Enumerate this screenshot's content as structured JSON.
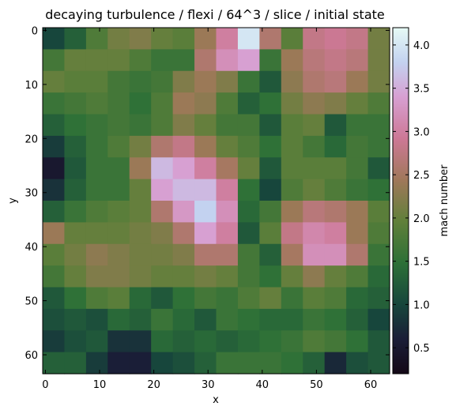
{
  "chart_data": {
    "type": "heatmap",
    "title": "decaying turbulence / flexi / 64^3 / slice / initial state",
    "xlabel": "x",
    "ylabel": "y",
    "xlim": [
      -0.5,
      63.5
    ],
    "ylim": [
      63.5,
      -0.5
    ],
    "xticks": [
      0,
      10,
      20,
      30,
      40,
      50,
      60
    ],
    "yticks": [
      0,
      10,
      20,
      30,
      40,
      50,
      60
    ],
    "colorbar": {
      "label": "mach number",
      "range": [
        0.2,
        4.2
      ],
      "ticks": [
        0.5,
        1.0,
        1.5,
        2.0,
        2.5,
        3.0,
        3.5,
        4.0
      ],
      "tick_labels": [
        "0.5",
        "1.0",
        "1.5",
        "2.0",
        "2.5",
        "3.0",
        "3.5",
        "4.0"
      ]
    },
    "colormap": "cubehelix",
    "grid": "coarse 16x16 resampling of the 64x64 field; rows listed top (y=0) to bottom (y=63), columns x=0..63",
    "values": [
      [
        1.0,
        1.3,
        1.8,
        2.1,
        2.2,
        2.0,
        1.9,
        2.4,
        3.0,
        4.0,
        2.6,
        1.9,
        2.8,
        2.9,
        2.8,
        2.1
      ],
      [
        1.7,
        2.0,
        2.0,
        2.0,
        1.8,
        1.6,
        1.6,
        2.6,
        3.2,
        3.4,
        1.6,
        2.4,
        2.7,
        2.8,
        2.7,
        2.1
      ],
      [
        2.0,
        1.9,
        1.9,
        1.7,
        1.6,
        1.7,
        2.2,
        2.4,
        2.2,
        1.6,
        1.2,
        2.3,
        2.6,
        2.7,
        2.4,
        2.1
      ],
      [
        1.6,
        1.7,
        1.8,
        1.7,
        1.5,
        1.8,
        2.4,
        2.3,
        1.8,
        1.3,
        1.5,
        2.1,
        2.3,
        2.2,
        2.0,
        1.8
      ],
      [
        1.3,
        1.5,
        1.6,
        1.7,
        1.6,
        1.8,
        2.2,
        2.0,
        1.7,
        1.7,
        1.2,
        1.9,
        2.0,
        1.2,
        1.6,
        1.6
      ],
      [
        0.9,
        1.3,
        1.6,
        1.8,
        2.1,
        2.6,
        2.8,
        2.4,
        2.0,
        1.8,
        1.5,
        1.9,
        1.7,
        1.4,
        1.7,
        1.6
      ],
      [
        0.5,
        1.2,
        1.6,
        1.6,
        2.4,
        3.6,
        3.4,
        3.0,
        2.5,
        2.0,
        1.2,
        1.9,
        1.9,
        1.9,
        1.7,
        1.2
      ],
      [
        0.8,
        1.3,
        1.6,
        1.6,
        2.0,
        3.4,
        3.6,
        3.6,
        3.0,
        1.5,
        1.0,
        1.8,
        2.0,
        1.8,
        1.6,
        1.5
      ],
      [
        1.3,
        1.6,
        1.8,
        1.9,
        2.0,
        2.6,
        3.3,
        3.8,
        3.2,
        1.4,
        1.7,
        2.4,
        2.7,
        2.6,
        2.4,
        1.9
      ],
      [
        2.4,
        2.0,
        2.0,
        2.0,
        2.1,
        2.2,
        2.6,
        3.4,
        3.0,
        1.2,
        1.9,
        2.8,
        3.1,
        3.0,
        2.4,
        1.8
      ],
      [
        1.9,
        2.1,
        2.3,
        2.2,
        2.1,
        2.1,
        2.2,
        2.6,
        2.6,
        1.7,
        1.3,
        2.5,
        3.2,
        3.2,
        2.6,
        1.6
      ],
      [
        1.7,
        2.0,
        2.2,
        2.2,
        2.1,
        2.0,
        2.0,
        2.1,
        2.0,
        1.7,
        1.5,
        2.0,
        2.3,
        2.0,
        1.8,
        1.4
      ],
      [
        1.2,
        1.5,
        1.8,
        1.9,
        1.4,
        1.2,
        1.5,
        1.7,
        1.6,
        1.8,
        2.0,
        1.6,
        1.9,
        1.8,
        1.4,
        1.3
      ],
      [
        1.1,
        1.2,
        1.1,
        1.4,
        1.3,
        1.6,
        1.4,
        1.2,
        1.6,
        1.5,
        1.4,
        1.4,
        1.6,
        1.5,
        1.3,
        1.0
      ],
      [
        0.9,
        1.1,
        1.2,
        0.8,
        0.8,
        1.4,
        1.3,
        1.4,
        1.3,
        1.4,
        1.5,
        1.6,
        1.8,
        1.7,
        1.5,
        1.2
      ],
      [
        1.3,
        1.3,
        0.9,
        0.6,
        0.6,
        1.0,
        1.1,
        1.3,
        1.6,
        1.6,
        1.6,
        1.5,
        1.3,
        0.7,
        1.1,
        1.2
      ]
    ]
  }
}
